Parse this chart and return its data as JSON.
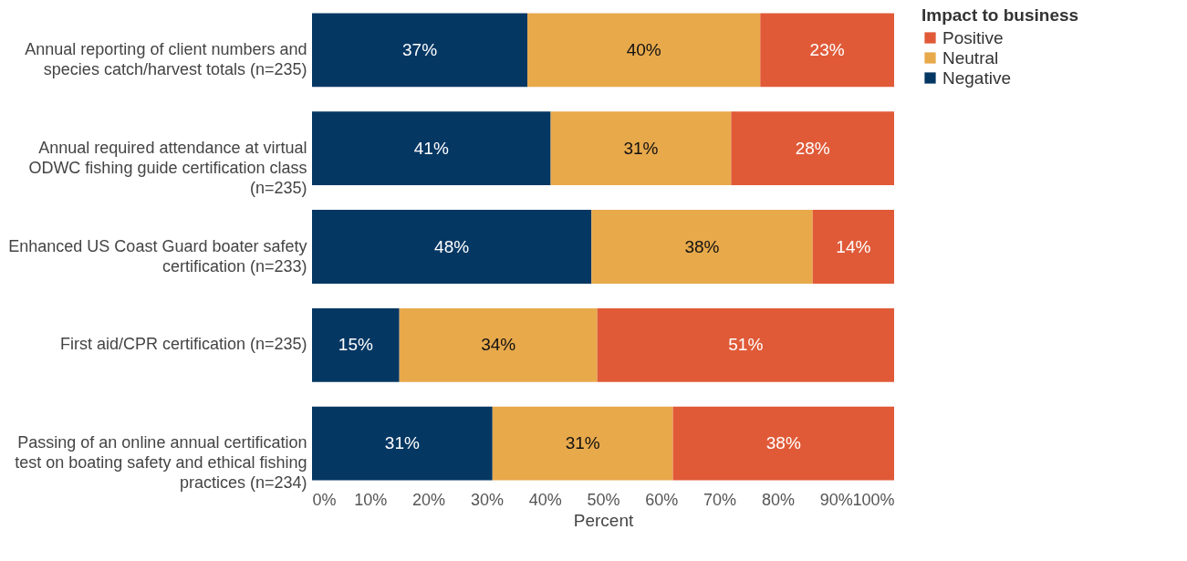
{
  "chart_data": {
    "type": "bar",
    "orientation": "horizontal",
    "stacked": true,
    "categories": [
      "Annual reporting of client numbers and species catch/harvest totals (n=235)",
      "Annual required attendance at virtual ODWC fishing guide certification class (n=235)",
      "Enhanced US Coast Guard boater safety certification (n=233)",
      "First aid/CPR certification (n=235)",
      "Passing of an online annual certification test on boating safety and ethical fishing practices (n=234)"
    ],
    "series": [
      {
        "name": "Negative",
        "color": "#053763",
        "values": [
          37,
          41,
          48,
          15,
          31
        ],
        "value_labels": [
          "37%",
          "41%",
          "48%",
          "15%",
          "31%"
        ]
      },
      {
        "name": "Neutral",
        "color": "#e8a94b",
        "values": [
          40,
          31,
          38,
          34,
          31
        ],
        "value_labels": [
          "40%",
          "31%",
          "38%",
          "34%",
          "31%"
        ]
      },
      {
        "name": "Positive",
        "color": "#e05a38",
        "values": [
          23,
          28,
          14,
          51,
          38
        ],
        "value_labels": [
          "23%",
          "28%",
          "14%",
          "51%",
          "38%"
        ]
      }
    ],
    "xlim": [
      0,
      100
    ],
    "xticks": [
      {
        "value": 0,
        "label": "0%"
      },
      {
        "value": 10,
        "label": "10%"
      },
      {
        "value": 20,
        "label": "20%"
      },
      {
        "value": 30,
        "label": "30%"
      },
      {
        "value": 40,
        "label": "40%"
      },
      {
        "value": 50,
        "label": "50%"
      },
      {
        "value": 60,
        "label": "60%"
      },
      {
        "value": 70,
        "label": "70%"
      },
      {
        "value": 80,
        "label": "80%"
      },
      {
        "value": 90,
        "label": "90%"
      },
      {
        "value": 100,
        "label": "100%"
      }
    ],
    "xlabel": "Percent",
    "legend_title": "Impact to business",
    "legend": "top right",
    "grid": false
  }
}
